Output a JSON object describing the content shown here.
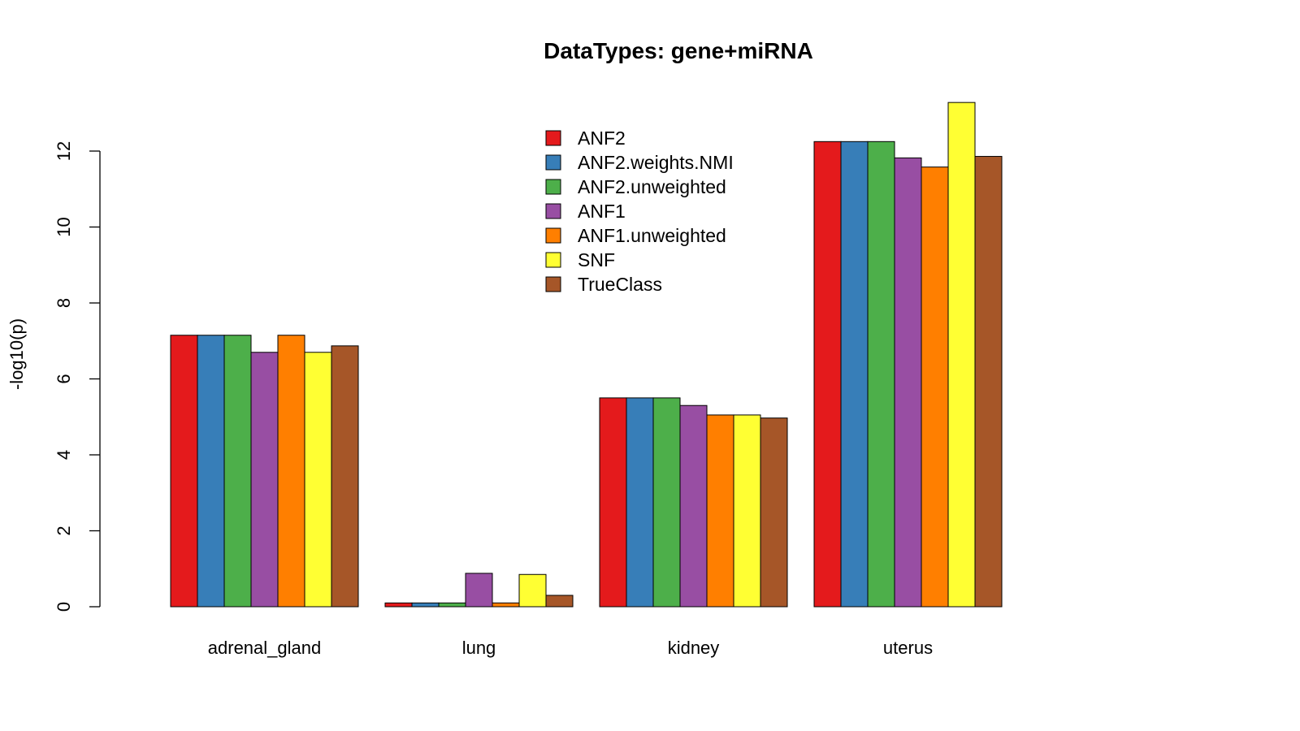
{
  "chart_data": {
    "type": "bar",
    "title": "DataTypes: gene+miRNA",
    "xlabel": "",
    "ylabel": "-log10(p)",
    "ylim": [
      0,
      14
    ],
    "yticks": [
      0,
      2,
      4,
      6,
      8,
      10,
      12
    ],
    "grid": false,
    "legend_position": "top-center",
    "categories": [
      "adrenal_gland",
      "lung",
      "kidney",
      "uterus"
    ],
    "series": [
      {
        "name": "ANF2",
        "color": "#e41a1c",
        "values": [
          7.15,
          0.1,
          5.5,
          12.25
        ]
      },
      {
        "name": "ANF2.weights.NMI",
        "color": "#377eb8",
        "values": [
          7.15,
          0.1,
          5.5,
          12.25
        ]
      },
      {
        "name": "ANF2.unweighted",
        "color": "#4daf4a",
        "values": [
          7.15,
          0.1,
          5.5,
          12.25
        ]
      },
      {
        "name": "ANF1",
        "color": "#984ea3",
        "values": [
          6.7,
          0.88,
          5.3,
          11.82
        ]
      },
      {
        "name": "ANF1.unweighted",
        "color": "#ff7f00",
        "values": [
          7.15,
          0.1,
          5.05,
          11.58
        ]
      },
      {
        "name": "SNF",
        "color": "#ffff33",
        "values": [
          6.7,
          0.85,
          5.05,
          13.28
        ]
      },
      {
        "name": "TrueClass",
        "color": "#a65628",
        "values": [
          6.87,
          0.3,
          4.97,
          11.86
        ]
      }
    ]
  }
}
